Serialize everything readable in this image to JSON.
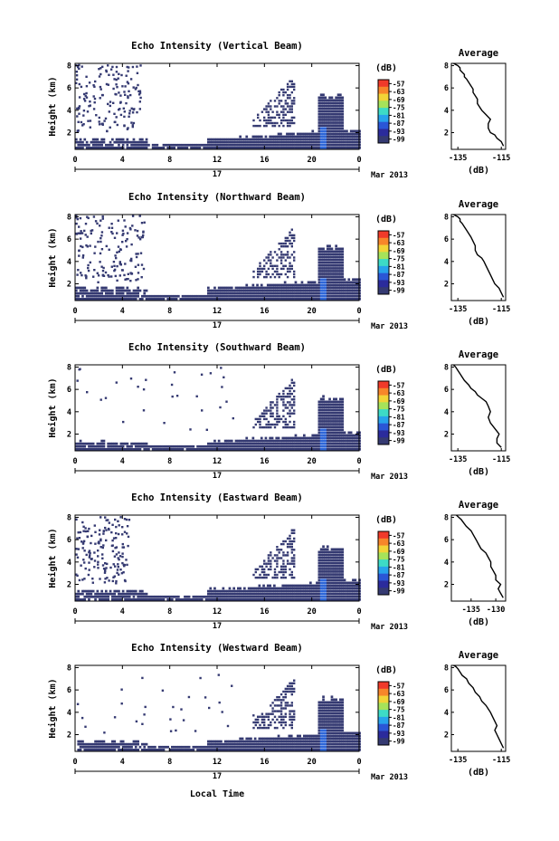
{
  "figure": {
    "xlabel": "Local Time",
    "date_label": "Mar 2013",
    "day_label": "17",
    "colorbar_unit": "(dB)",
    "colorbar_ticks": [
      "-57",
      "-63",
      "-69",
      "-75",
      "-81",
      "-87",
      "-93",
      "-99"
    ],
    "colorbar_colors": [
      "#f03a2a",
      "#f7862a",
      "#f2d437",
      "#a6e35a",
      "#3ddbc6",
      "#27a3ec",
      "#2a56d6",
      "#2b2b9c",
      "#353a72"
    ],
    "echo_color": "#353a72",
    "echo_core_color": "#2f67d8",
    "ylabel": "Height (km)",
    "profile_title": "Average",
    "profile_xlabel": "(dB)"
  },
  "chart_data": [
    {
      "type": "heatmap",
      "title": "Echo Intensity (Vertical Beam)",
      "x_ticks": [
        "0",
        "4",
        "8",
        "12",
        "16",
        "20",
        "0"
      ],
      "xlim": [
        0,
        24
      ],
      "y_ticks": [
        "2",
        "4",
        "6",
        "8"
      ],
      "ylim": [
        0.5,
        8.2
      ],
      "clutter_seed": 11,
      "upper_clutter_end": 5.5,
      "lower_echo_thickness_km": 0.6
    },
    {
      "type": "line",
      "title": "Average",
      "x_ticks": [
        "-135",
        "-115"
      ],
      "xlim": [
        -138,
        -113
      ],
      "y_ticks": [
        "2",
        "4",
        "6",
        "8"
      ],
      "ylim": [
        0.5,
        8.2
      ],
      "x": [
        -114,
        -115,
        -117,
        -118,
        -120,
        -121,
        -121,
        -120,
        -122,
        -124,
        -125,
        -126,
        -126,
        -127,
        -128,
        -128,
        -129,
        -130,
        -131,
        -132,
        -132,
        -133,
        -134,
        -134,
        -135,
        -136,
        -137
      ],
      "y": [
        0.8,
        1.2,
        1.5,
        1.8,
        2.0,
        2.4,
        2.8,
        3.2,
        3.6,
        4.0,
        4.3,
        4.6,
        5.0,
        5.3,
        5.6,
        5.9,
        6.2,
        6.5,
        6.8,
        7.0,
        7.2,
        7.4,
        7.6,
        7.8,
        8.0,
        8.1,
        8.2
      ]
    },
    {
      "type": "heatmap",
      "title": "Echo Intensity (Northward Beam)",
      "x_ticks": [
        "0",
        "4",
        "8",
        "12",
        "16",
        "20",
        "0"
      ],
      "xlim": [
        0,
        24
      ],
      "y_ticks": [
        "2",
        "4",
        "6",
        "8"
      ],
      "ylim": [
        0.5,
        8.2
      ],
      "clutter_seed": 23,
      "upper_clutter_end": 5.8,
      "lower_echo_thickness_km": 0.8
    },
    {
      "type": "line",
      "title": "Average",
      "x_ticks": [
        "-135",
        "-115"
      ],
      "xlim": [
        -138,
        -113
      ],
      "y_ticks": [
        "2",
        "4",
        "6",
        "8"
      ],
      "ylim": [
        0.5,
        8.2
      ],
      "x": [
        -114,
        -115,
        -116,
        -118,
        -119,
        -120,
        -121,
        -122,
        -123,
        -124,
        -126,
        -127,
        -127,
        -128,
        -129,
        -130,
        -131,
        -132,
        -133,
        -134,
        -134,
        -135,
        -136,
        -137
      ],
      "y": [
        0.8,
        1.2,
        1.6,
        2.0,
        2.4,
        2.8,
        3.2,
        3.6,
        4.0,
        4.3,
        4.6,
        5.0,
        5.4,
        5.8,
        6.2,
        6.5,
        6.8,
        7.1,
        7.4,
        7.6,
        7.8,
        8.0,
        8.1,
        8.2
      ]
    },
    {
      "type": "heatmap",
      "title": "Echo Intensity (Southward Beam)",
      "x_ticks": [
        "0",
        "4",
        "8",
        "12",
        "16",
        "20",
        "0"
      ],
      "xlim": [
        0,
        24
      ],
      "y_ticks": [
        "2",
        "4",
        "6",
        "8"
      ],
      "ylim": [
        0.5,
        8.2
      ],
      "clutter_seed": 37,
      "upper_clutter_end": 0.0,
      "lower_echo_thickness_km": 0.5
    },
    {
      "type": "line",
      "title": "Average",
      "x_ticks": [
        "-135",
        "-115"
      ],
      "xlim": [
        -138,
        -113
      ],
      "y_ticks": [
        "2",
        "4",
        "6",
        "8"
      ],
      "ylim": [
        0.5,
        8.2
      ],
      "x": [
        -115,
        -117,
        -117,
        -116,
        -118,
        -120,
        -121,
        -120,
        -121,
        -122,
        -124,
        -126,
        -127,
        -129,
        -130,
        -132,
        -133,
        -134,
        -135,
        -136,
        -137
      ],
      "y": [
        0.8,
        1.2,
        1.6,
        2.0,
        2.5,
        3.0,
        3.5,
        4.0,
        4.5,
        4.9,
        5.2,
        5.5,
        5.8,
        6.1,
        6.4,
        6.8,
        7.1,
        7.4,
        7.7,
        8.0,
        8.2
      ]
    },
    {
      "type": "heatmap",
      "title": "Echo Intensity (Eastward Beam)",
      "x_ticks": [
        "0",
        "4",
        "8",
        "12",
        "16",
        "20",
        "0"
      ],
      "xlim": [
        0,
        24
      ],
      "y_ticks": [
        "2",
        "4",
        "6",
        "8"
      ],
      "ylim": [
        0.5,
        8.2
      ],
      "clutter_seed": 53,
      "upper_clutter_end": 4.5,
      "lower_echo_thickness_km": 0.7
    },
    {
      "type": "line",
      "title": "Average",
      "x_ticks": [
        "-135",
        "-130"
      ],
      "xlim": [
        -139,
        -128
      ],
      "y_ticks": [
        "2",
        "4",
        "6",
        "8"
      ],
      "ylim": [
        0.5,
        8.2
      ],
      "x": [
        -128.5,
        -129,
        -129.5,
        -129,
        -130,
        -130,
        -130.5,
        -131,
        -131,
        -131.5,
        -132,
        -133,
        -133.5,
        -134,
        -134.5,
        -135,
        -136,
        -136.5,
        -137,
        -137.5,
        -138
      ],
      "y": [
        0.8,
        1.2,
        1.6,
        2.0,
        2.4,
        2.8,
        3.2,
        3.6,
        4.0,
        4.4,
        4.8,
        5.2,
        5.6,
        6.0,
        6.4,
        6.8,
        7.2,
        7.5,
        7.8,
        8.0,
        8.2
      ]
    },
    {
      "type": "heatmap",
      "title": "Echo Intensity (Westward Beam)",
      "x_ticks": [
        "0",
        "4",
        "8",
        "12",
        "16",
        "20",
        "0"
      ],
      "xlim": [
        0,
        24
      ],
      "y_ticks": [
        "2",
        "4",
        "6",
        "8"
      ],
      "ylim": [
        0.5,
        8.2
      ],
      "clutter_seed": 71,
      "upper_clutter_end": 0.0,
      "lower_echo_thickness_km": 0.6
    },
    {
      "type": "line",
      "title": "Average",
      "x_ticks": [
        "-135",
        "-115"
      ],
      "xlim": [
        -138,
        -113
      ],
      "y_ticks": [
        "2",
        "4",
        "6",
        "8"
      ],
      "ylim": [
        0.5,
        8.2
      ],
      "x": [
        -114,
        -115,
        -116,
        -117,
        -118,
        -117,
        -118,
        -119,
        -120,
        -121,
        -122,
        -124,
        -125,
        -127,
        -128,
        -130,
        -131,
        -133,
        -134,
        -135,
        -136,
        -137
      ],
      "y": [
        0.8,
        1.2,
        1.6,
        2.0,
        2.4,
        2.8,
        3.2,
        3.6,
        4.0,
        4.3,
        4.6,
        5.0,
        5.4,
        5.8,
        6.2,
        6.6,
        7.0,
        7.3,
        7.6,
        7.9,
        8.1,
        8.2
      ]
    }
  ]
}
